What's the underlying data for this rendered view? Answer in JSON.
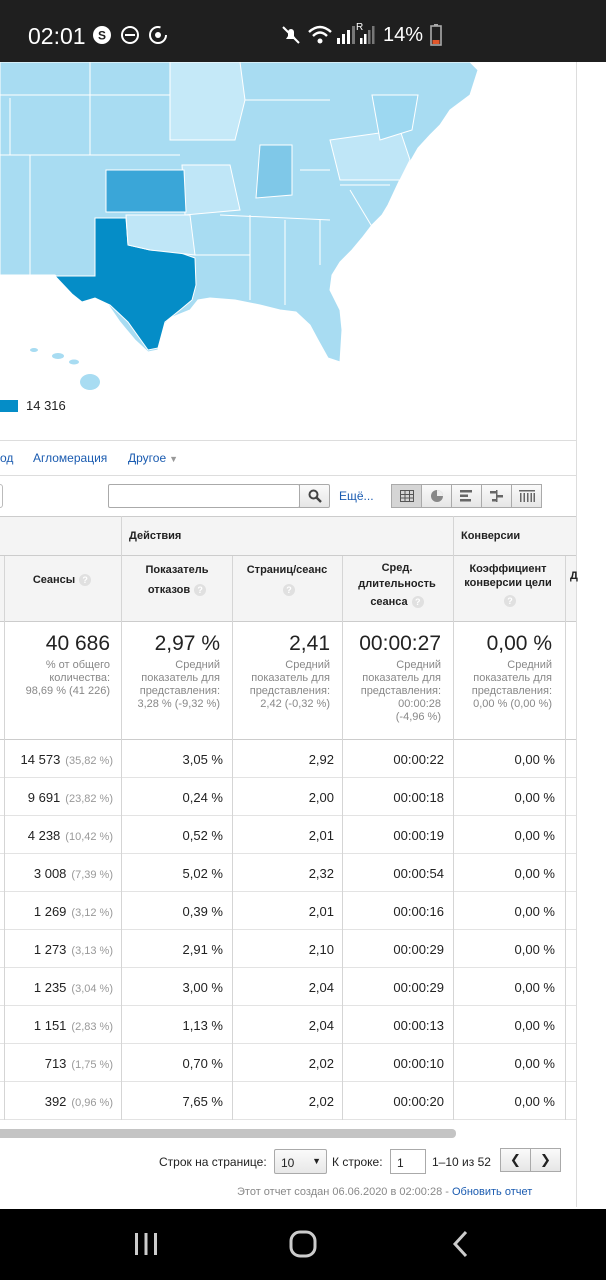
{
  "status_bar": {
    "time": "02:01",
    "battery_percent": "14%",
    "roaming_letter": "R"
  },
  "map": {
    "legend_max": "14 316",
    "colors": {
      "base": "#a8dcf2",
      "light": "#c5e9f8",
      "mid": "#7fc8e8",
      "kansas": "#3aa6d8",
      "texas": "#058dc7"
    }
  },
  "dimension_tabs": {
    "city": "од",
    "metro": "Агломерация",
    "other": "Другое"
  },
  "toolbar": {
    "search_value": "",
    "more_label": "Ещё..."
  },
  "table": {
    "groups": {
      "actions": "Действия",
      "conversions": "Конверсии"
    },
    "columns": {
      "sessions": "Сеансы",
      "bounce": [
        "Показатель",
        "отказов"
      ],
      "pages": "Страниц/сеанс",
      "duration": [
        "Сред.",
        "длительность",
        "сеанса"
      ],
      "conversion": [
        "Коэффициент",
        "конверсии цели"
      ]
    },
    "totals": {
      "sessions": "40 686",
      "sessions_note": [
        "% от общего",
        "количества:",
        "98,69 % (41 226)"
      ],
      "bounce": "2,97 %",
      "bounce_note": [
        "Средний",
        "показатель для",
        "представления:",
        "3,28 % (-9,32 %)"
      ],
      "pages": "2,41",
      "pages_note": [
        "Средний",
        "показатель для",
        "представления:",
        "2,42 (-0,32 %)"
      ],
      "duration": "00:00:27",
      "duration_note": [
        "Средний",
        "показатель для",
        "представления:",
        "00:00:28",
        "(-4,96 %)"
      ],
      "conversion": "0,00 %",
      "conversion_note": [
        "Средний",
        "показатель для",
        "представления:",
        "0,00 % (0,00 %)"
      ]
    },
    "rows": [
      {
        "sessions": "14 573",
        "pct": "(35,82 %)",
        "bounce": "3,05 %",
        "pages": "2,92",
        "duration": "00:00:22",
        "conversion": "0,00 %"
      },
      {
        "sessions": "9 691",
        "pct": "(23,82 %)",
        "bounce": "0,24 %",
        "pages": "2,00",
        "duration": "00:00:18",
        "conversion": "0,00 %"
      },
      {
        "sessions": "4 238",
        "pct": "(10,42 %)",
        "bounce": "0,52 %",
        "pages": "2,01",
        "duration": "00:00:19",
        "conversion": "0,00 %"
      },
      {
        "sessions": "3 008",
        "pct": "(7,39 %)",
        "bounce": "5,02 %",
        "pages": "2,32",
        "duration": "00:00:54",
        "conversion": "0,00 %"
      },
      {
        "sessions": "1 269",
        "pct": "(3,12 %)",
        "bounce": "0,39 %",
        "pages": "2,01",
        "duration": "00:00:16",
        "conversion": "0,00 %"
      },
      {
        "sessions": "1 273",
        "pct": "(3,13 %)",
        "bounce": "2,91 %",
        "pages": "2,10",
        "duration": "00:00:29",
        "conversion": "0,00 %"
      },
      {
        "sessions": "1 235",
        "pct": "(3,04 %)",
        "bounce": "3,00 %",
        "pages": "2,04",
        "duration": "00:00:29",
        "conversion": "0,00 %"
      },
      {
        "sessions": "1 151",
        "pct": "(2,83 %)",
        "bounce": "1,13 %",
        "pages": "2,04",
        "duration": "00:00:13",
        "conversion": "0,00 %"
      },
      {
        "sessions": "713",
        "pct": "(1,75 %)",
        "bounce": "0,70 %",
        "pages": "2,02",
        "duration": "00:00:10",
        "conversion": "0,00 %"
      },
      {
        "sessions": "392",
        "pct": "(0,96 %)",
        "bounce": "7,65 %",
        "pages": "2,02",
        "duration": "00:00:20",
        "conversion": "0,00 %"
      }
    ]
  },
  "pager": {
    "rows_label": "Строк на странице:",
    "rows_value": "10",
    "goto_label": "К строке:",
    "goto_value": "1",
    "range": "1–10 из 52"
  },
  "footer": {
    "created": "Этот отчет создан 06.06.2020 в 02:00:28 - ",
    "refresh_link": "Обновить отчет"
  }
}
